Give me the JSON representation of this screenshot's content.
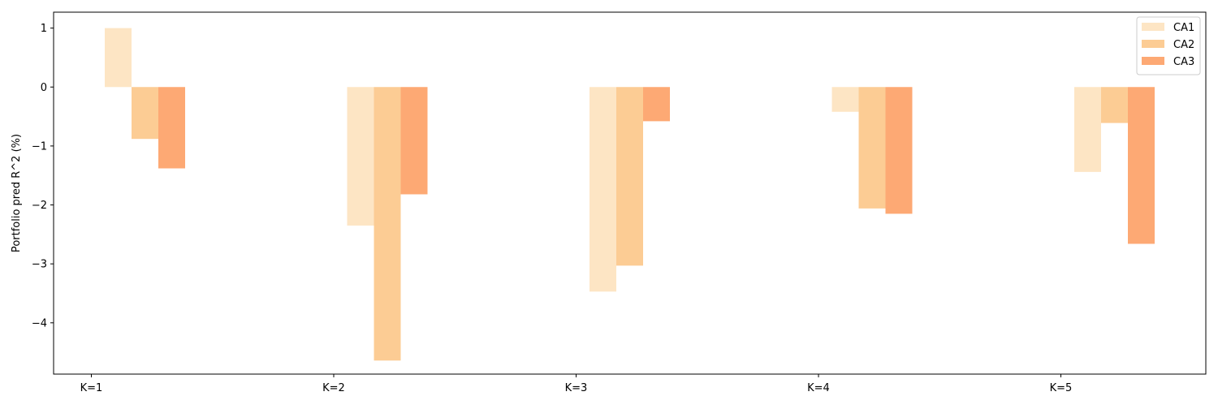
{
  "chart_data": {
    "type": "bar",
    "title": "",
    "xlabel": "",
    "ylabel": "Portfolio pred R^2 (%)",
    "categories": [
      "K=1",
      "K=2",
      "K=3",
      "K=4",
      "K=5"
    ],
    "series": [
      {
        "name": "CA1",
        "color": "#fde5c4",
        "values": [
          1.0,
          -2.35,
          -3.47,
          -0.42,
          -1.44
        ]
      },
      {
        "name": "CA2",
        "color": "#fccc94",
        "values": [
          -0.88,
          -4.64,
          -3.03,
          -2.06,
          -0.61
        ]
      },
      {
        "name": "CA3",
        "color": "#fda974",
        "values": [
          -1.38,
          -1.82,
          -0.58,
          -2.15,
          -2.66
        ]
      }
    ],
    "ylim": [
      -4.87,
      1.27
    ],
    "yticks": [
      1,
      0,
      -1,
      -2,
      -3,
      -4
    ],
    "ytick_labels": [
      "1",
      "0",
      "−1",
      "−2",
      "−3",
      "−4"
    ],
    "grid": false,
    "legend_position": "top-right"
  }
}
